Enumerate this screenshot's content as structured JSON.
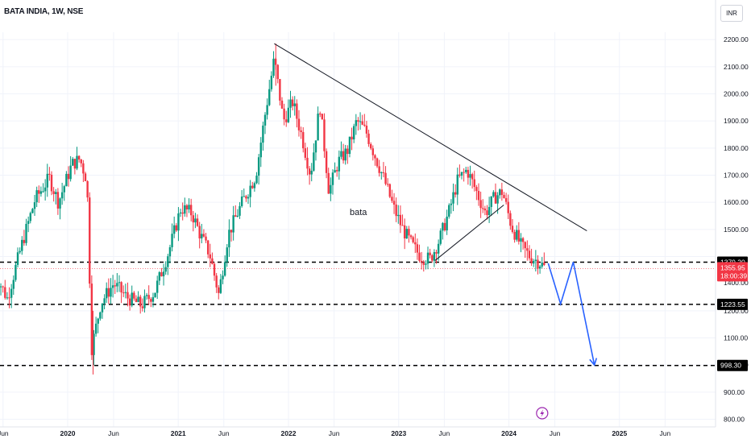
{
  "header": {
    "title": "BATA INDIA, 1W, NSE",
    "currency": "INR"
  },
  "colors": {
    "up": "#089981",
    "down": "#f23645",
    "forecast": "#2962ff",
    "event": "#9c27b0"
  },
  "event_icon": "lightning-icon",
  "chart_data": {
    "type": "candlestick",
    "symbol": "BATA INDIA",
    "interval": "1W",
    "exchange": "NSE",
    "ylim": [
      790,
      2250
    ],
    "y_ticks": [
      "2200.00",
      "2100.00",
      "2000.00",
      "1900.00",
      "1800.00",
      "1700.00",
      "1600.00",
      "1500.00",
      "1400.00",
      "1200.00",
      "1100.00",
      "1000.00",
      "900.00",
      "800.00"
    ],
    "x_ticks": [
      {
        "label": "Jun",
        "bold": false
      },
      {
        "label": "2020",
        "bold": true
      },
      {
        "label": "Jun",
        "bold": false
      },
      {
        "label": "2021",
        "bold": true
      },
      {
        "label": "Jun",
        "bold": false
      },
      {
        "label": "2022",
        "bold": true
      },
      {
        "label": "Jun",
        "bold": false
      },
      {
        "label": "2023",
        "bold": true
      },
      {
        "label": "Jun",
        "bold": false
      },
      {
        "label": "2024",
        "bold": true
      },
      {
        "label": "Jun",
        "bold": false
      },
      {
        "label": "2025",
        "bold": true
      },
      {
        "label": "Jun",
        "bold": false
      }
    ],
    "price_levels": [
      {
        "value": 1379.2,
        "label": "1379.20"
      },
      {
        "value": 1223.55,
        "label": "1223.55"
      },
      {
        "value": 998.3,
        "label": "998.30"
      }
    ],
    "last_price": {
      "value": 1355.95,
      "label": "1355.95",
      "countdown": "18:00:39"
    },
    "annotation": "bata",
    "trendlines": [
      {
        "from": [
          "2021-11-15",
          2185
        ],
        "to": [
          "2024-09-15",
          1495
        ]
      },
      {
        "from": [
          "2023-05-01",
          1385
        ],
        "to": [
          "2023-12-15",
          1590
        ]
      }
    ],
    "forecast_path": [
      [
        "2024-05-10",
        1375
      ],
      [
        "2024-06-20",
        1225
      ],
      [
        "2024-08-01",
        1380
      ],
      [
        "2024-10-10",
        1000
      ]
    ],
    "close_path": [
      [
        "2019-05-01",
        1350
      ],
      [
        "2019-06-15",
        1245
      ],
      [
        "2019-08-01",
        1440
      ],
      [
        "2019-09-15",
        1610
      ],
      [
        "2019-11-01",
        1690
      ],
      [
        "2019-12-01",
        1600
      ],
      [
        "2020-01-15",
        1740
      ],
      [
        "2020-02-10",
        1760
      ],
      [
        "2020-03-05",
        1680
      ],
      [
        "2020-03-20",
        1060
      ],
      [
        "2020-04-20",
        1230
      ],
      [
        "2020-06-01",
        1300
      ],
      [
        "2020-07-15",
        1250
      ],
      [
        "2020-09-01",
        1220
      ],
      [
        "2020-10-15",
        1270
      ],
      [
        "2020-12-01",
        1420
      ],
      [
        "2021-01-10",
        1580
      ],
      [
        "2021-02-15",
        1560
      ],
      [
        "2021-03-15",
        1480
      ],
      [
        "2021-04-15",
        1410
      ],
      [
        "2021-05-15",
        1260
      ],
      [
        "2021-06-15",
        1480
      ],
      [
        "2021-08-01",
        1600
      ],
      [
        "2021-09-15",
        1700
      ],
      [
        "2021-10-15",
        1920
      ],
      [
        "2021-11-15",
        2130
      ],
      [
        "2021-12-15",
        1900
      ],
      [
        "2022-01-15",
        1970
      ],
      [
        "2022-02-15",
        1840
      ],
      [
        "2022-03-15",
        1700
      ],
      [
        "2022-04-15",
        1960
      ],
      [
        "2022-05-15",
        1640
      ],
      [
        "2022-06-15",
        1750
      ],
      [
        "2022-07-15",
        1790
      ],
      [
        "2022-08-15",
        1900
      ],
      [
        "2022-09-15",
        1860
      ],
      [
        "2022-10-15",
        1770
      ],
      [
        "2022-11-15",
        1680
      ],
      [
        "2022-12-15",
        1580
      ],
      [
        "2023-01-15",
        1500
      ],
      [
        "2023-02-15",
        1440
      ],
      [
        "2023-03-15",
        1400
      ],
      [
        "2023-04-15",
        1390
      ],
      [
        "2023-05-15",
        1460
      ],
      [
        "2023-06-15",
        1560
      ],
      [
        "2023-07-15",
        1680
      ],
      [
        "2023-08-15",
        1720
      ],
      [
        "2023-09-15",
        1640
      ],
      [
        "2023-10-15",
        1560
      ],
      [
        "2023-11-15",
        1620
      ],
      [
        "2023-12-10",
        1640
      ],
      [
        "2024-01-10",
        1510
      ],
      [
        "2024-02-10",
        1440
      ],
      [
        "2024-03-10",
        1400
      ],
      [
        "2024-04-10",
        1380
      ],
      [
        "2024-05-01",
        1356
      ]
    ]
  }
}
